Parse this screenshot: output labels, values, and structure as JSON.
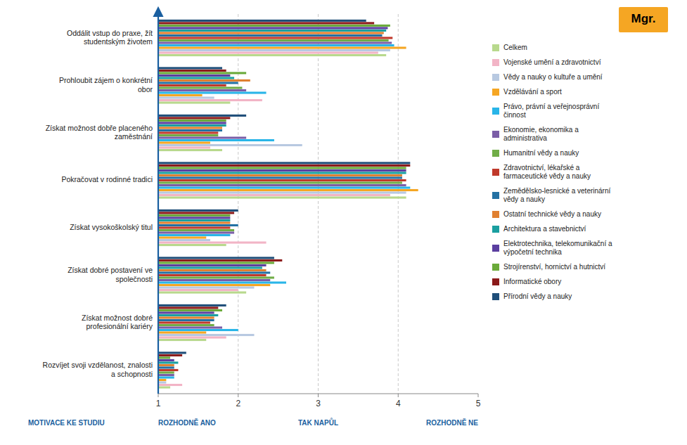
{
  "chart_data": {
    "type": "bar",
    "orientation": "horizontal",
    "categories": [
      "Oddálit vstup do praxe, žít\nstudentským životem",
      "Prohloubit zájem o konkrétní\nobor",
      "Získat možnost dobře placeného\nzaměstnání",
      "Pokračovat v rodinné tradici",
      "Získat vysokoškolský titul",
      "Získat dobré postavení ve\nspolečnosti",
      "Získat možnost dobré\nprofesionální kariéry",
      "Rozvíjet svoji vzdělanost, znalosti\na schopnosti"
    ],
    "series": [
      {
        "name": "Celkem",
        "color": "#b8d98d",
        "values": [
          3.85,
          1.9,
          1.8,
          4.1,
          1.85,
          2.1,
          1.6,
          1.15
        ]
      },
      {
        "name": "Vojenské umění a zdravotnictví",
        "color": "#f2b4c6",
        "values": [
          3.75,
          2.3,
          1.65,
          3.9,
          2.35,
          2.0,
          1.85,
          1.3
        ]
      },
      {
        "name": "Vědy a nauky o kultuře a umění",
        "color": "#b8c9e1",
        "values": [
          3.9,
          1.7,
          2.8,
          4.1,
          1.65,
          2.2,
          2.2,
          1.1
        ]
      },
      {
        "name": "Vzdělávání a sport",
        "color": "#f5a623",
        "values": [
          4.1,
          1.55,
          1.65,
          4.25,
          1.6,
          2.4,
          1.6,
          1.1
        ]
      },
      {
        "name": "Právo, právní a veřejnosprávní\nčinnost",
        "color": "#29b5e8",
        "values": [
          3.95,
          2.35,
          2.45,
          4.15,
          1.9,
          2.6,
          2.0,
          1.2
        ]
      },
      {
        "name": "Ekonomie, ekonomika a\nadministrativa",
        "color": "#7b5ea7",
        "values": [
          3.92,
          2.1,
          2.1,
          4.1,
          1.95,
          2.4,
          1.8,
          1.2
        ]
      },
      {
        "name": "Humanitní vědy a nauky",
        "color": "#70ad47",
        "values": [
          3.88,
          2.05,
          1.75,
          4.05,
          1.95,
          2.45,
          1.7,
          1.2
        ]
      },
      {
        "name": "Zdravotnictví, lékařské a\nfarmaceutické vědy a nauky",
        "color": "#c0392b",
        "values": [
          3.93,
          1.85,
          1.75,
          4.1,
          1.9,
          2.35,
          1.65,
          1.25
        ]
      },
      {
        "name": "Zemědělsko-lesnické a veterinární\nvědy a nauky",
        "color": "#2471a3",
        "values": [
          3.8,
          2.0,
          1.8,
          4.05,
          2.0,
          2.4,
          1.7,
          1.2
        ]
      },
      {
        "name": "Ostatní technické vědy a nauky",
        "color": "#e08030",
        "values": [
          3.82,
          2.15,
          1.8,
          4.05,
          1.9,
          2.35,
          1.7,
          1.2
        ]
      },
      {
        "name": "Architektura a stavebnictví",
        "color": "#1a9fa0",
        "values": [
          3.85,
          1.95,
          1.85,
          4.1,
          1.9,
          2.3,
          1.75,
          1.25
        ]
      },
      {
        "name": "Elektrotechnika, telekomunikační a\nvýpočetní technika",
        "color": "#5b3fa0",
        "values": [
          3.87,
          1.9,
          1.85,
          4.1,
          1.9,
          2.35,
          1.7,
          1.2
        ]
      },
      {
        "name": "Strojírenství, hornictví a hutnictví",
        "color": "#6aaa3a",
        "values": [
          3.9,
          2.1,
          1.85,
          4.1,
          1.9,
          2.45,
          1.8,
          1.15
        ]
      },
      {
        "name": "Informatické obory",
        "color": "#8b1a1a",
        "values": [
          3.7,
          1.85,
          1.9,
          4.15,
          1.95,
          2.55,
          1.75,
          1.3
        ]
      },
      {
        "name": "Přírodní vědy a nauky",
        "color": "#1f4e79",
        "values": [
          3.6,
          1.8,
          2.1,
          4.15,
          2.0,
          2.45,
          1.85,
          1.35
        ]
      }
    ],
    "xlim": [
      1,
      5
    ],
    "xticks": [
      1,
      2,
      3,
      4,
      5
    ],
    "grid": true,
    "legend": "right",
    "annotations": [
      "ROZHODNĚ ANO",
      "TAK NAPŮL",
      "ROZHODNĚ NE",
      "MOTIVACE KE STUDIU",
      "Mgr."
    ]
  }
}
